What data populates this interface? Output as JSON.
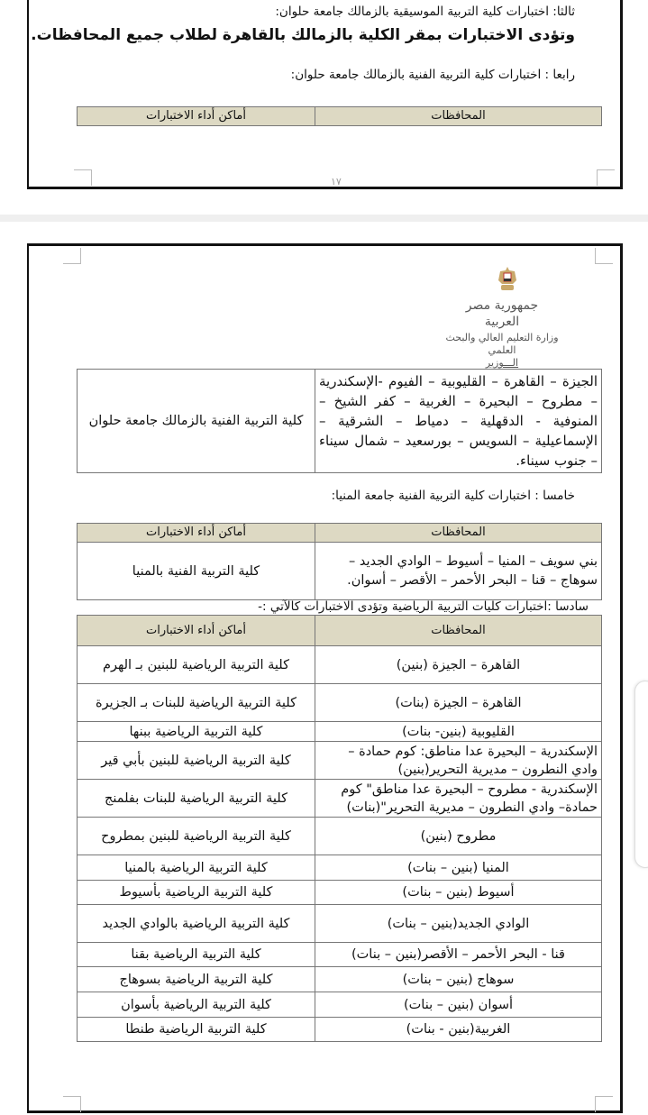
{
  "page1": {
    "section3_title": "ثالثا: اختبارات كلية التربية الموسيقية بالزمالك جامعة حلوان:",
    "section3_text": "وتؤدى الاختبارات بمقر الكلية بالزمالك بالقاهرة لطلاب جميع المحافظات.",
    "section4_title": "رابعا : اختبارات كلية التربية الفنية بالزمالك جامعة حلوان:",
    "table_headers": {
      "governorates": "المحافظات",
      "locations": "أماكن أداء الاختبارات"
    },
    "page_number": "١٧"
  },
  "page2": {
    "letterhead": {
      "line1": "جمهورية مصر",
      "line2": "العربية",
      "line3": "وزارة التعليم العالي والبحث",
      "line4": "العلمي",
      "line5": "الـــوزير"
    },
    "table4_row": {
      "governorates": "الجيزة – القاهرة – القليوبية – الفيوم -الإسكندرية – مطروح – البحيرة – الغربية – كفر الشيخ – المنوفية - الدقهلية – دمياط – الشرقية – الإسماعيلية – السويس – بورسعيد – شمال سيناء – جنوب سيناء.",
      "location": "كلية التربية الفنية بالزمالك جامعة حلوان"
    },
    "section5_title": "خامسا : اختبارات كلية التربية الفنية جامعة المنيا:",
    "table5": {
      "headers": {
        "governorates": "المحافظات",
        "locations": "أماكن أداء الاختبارات"
      },
      "row": {
        "governorates": "بني سويف – المنيا – أسيوط – الوادي الجديد – سوهاج – قنا – البحر الأحمر – الأقصر – أسوان.",
        "location": "كلية التربية الفنية بالمنيا"
      }
    },
    "section6_title": "سادسا :اختبارات كليات التربية الرياضية وتؤدى الاختبارات كالآتي :-",
    "table6": {
      "headers": {
        "governorates": "المحافظات",
        "locations": "أماكن أداء الاختبارات"
      },
      "rows": [
        {
          "governorates": "القاهرة – الجيزة (بنين)",
          "location": "كلية التربية الرياضية للبنين بـ الهرم"
        },
        {
          "governorates": "القاهرة – الجيزة (بنات)",
          "location": "كلية التربية الرياضية للبنات بـ الجزيرة"
        },
        {
          "governorates": "القليوبية (بنين- بنات)",
          "location": "كلية التربية الرياضية ببنها"
        },
        {
          "governorates": "الإسكندرية – البحيرة عدا مناطق: كوم حمادة – وادي النطرون – مديرية التحرير(بنين)",
          "location": "كلية التربية الرياضية للبنين بأبي قير"
        },
        {
          "governorates": "الإسكندرية - مطروح – البحيرة عدا مناطق\" كوم حمادة– وادي النطرون – مديرية التحرير\"(بنات)",
          "location": "كلية التربية الرياضية للبنات بفلمنج"
        },
        {
          "governorates": "مطروح (بنين)",
          "location": "كلية التربية الرياضية للبنين بمطروح"
        },
        {
          "governorates": "المنيا (بنين – بنات)",
          "location": "كلية التربية الرياضية بالمنيا"
        },
        {
          "governorates": "أسيوط (بنين – بنات)",
          "location": "كلية التربية الرياضية بأسيوط"
        },
        {
          "governorates": "الوادي الجديد(بنين – بنات)",
          "location": "كلية التربية الرياضية بالوادي الجديد"
        },
        {
          "governorates": "قنا - البحر الأحمر – الأقصر(بنين – بنات)",
          "location": "كلية التربية الرياضية بقنا"
        },
        {
          "governorates": "سوهاج (بنين – بنات)",
          "location": "كلية التربية الرياضية بسوهاج"
        },
        {
          "governorates": "أسوان (بنين – بنات)",
          "location": "كلية التربية الرياضية بأسوان"
        },
        {
          "governorates": "الغربية(بنين - بنات)",
          "location": "كلية التربية الرياضية طنطا"
        }
      ]
    }
  },
  "colors": {
    "table_header_bg": "#ddd9c3",
    "page_border": "#111111"
  }
}
